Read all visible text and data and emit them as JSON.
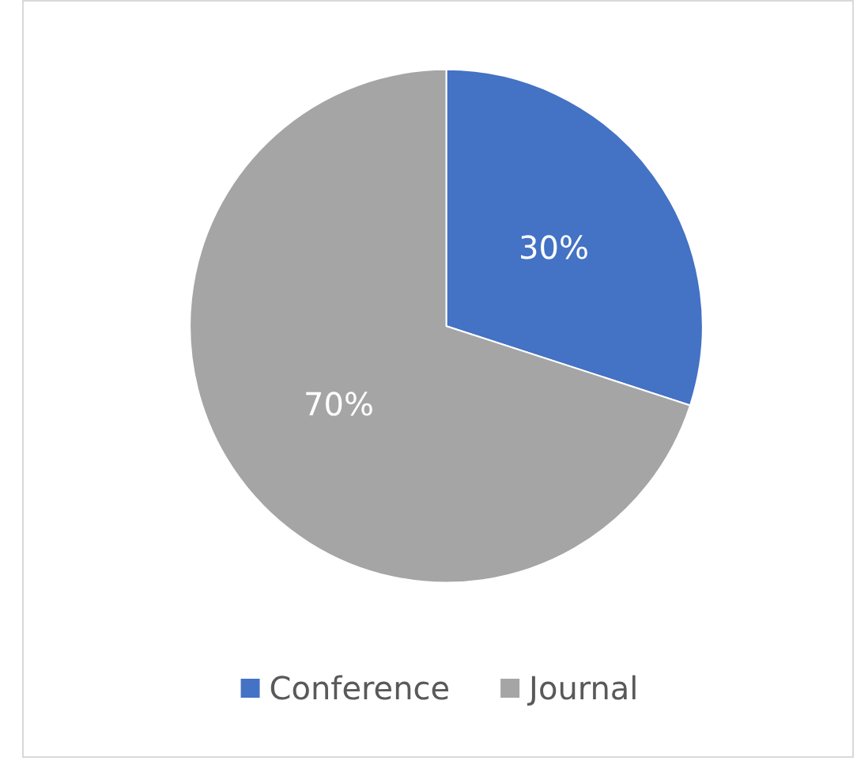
{
  "chart_data": {
    "type": "pie",
    "categories": [
      "Conference",
      "Journal"
    ],
    "values": [
      30,
      70
    ],
    "colors": [
      "#4472c4",
      "#a5a5a5"
    ],
    "value_labels": [
      "30%",
      "70%"
    ],
    "legend": "bottom"
  }
}
